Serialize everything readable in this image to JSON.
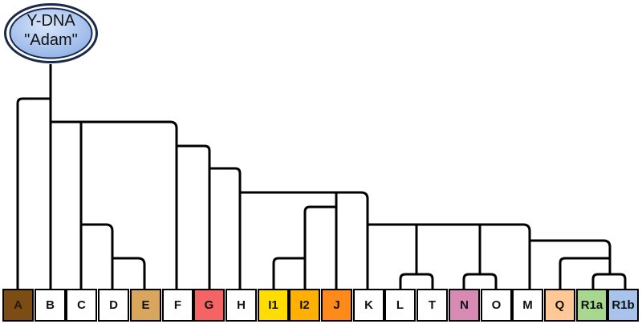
{
  "root": {
    "line1": "Y-DNA",
    "line2": "\"Adam\""
  },
  "haplogroups": [
    {
      "label": "A",
      "color": "#7b4c14",
      "text_color": "#2a1a05"
    },
    {
      "label": "B",
      "color": "#ffffff",
      "text_color": "#111111"
    },
    {
      "label": "C",
      "color": "#ffffff",
      "text_color": "#111111"
    },
    {
      "label": "D",
      "color": "#ffffff",
      "text_color": "#111111"
    },
    {
      "label": "E",
      "color": "#d9a65e",
      "text_color": "#111111"
    },
    {
      "label": "F",
      "color": "#ffffff",
      "text_color": "#111111"
    },
    {
      "label": "G",
      "color": "#f46464",
      "text_color": "#111111"
    },
    {
      "label": "H",
      "color": "#ffffff",
      "text_color": "#111111"
    },
    {
      "label": "I1",
      "color": "#ffdd00",
      "text_color": "#111111"
    },
    {
      "label": "I2",
      "color": "#ffb000",
      "text_color": "#111111"
    },
    {
      "label": "J",
      "color": "#ff8a1a",
      "text_color": "#111111"
    },
    {
      "label": "K",
      "color": "#ffffff",
      "text_color": "#111111"
    },
    {
      "label": "L",
      "color": "#ffffff",
      "text_color": "#111111"
    },
    {
      "label": "T",
      "color": "#ffffff",
      "text_color": "#111111"
    },
    {
      "label": "N",
      "color": "#d68ab4",
      "text_color": "#111111"
    },
    {
      "label": "O",
      "color": "#ffffff",
      "text_color": "#111111"
    },
    {
      "label": "M",
      "color": "#ffffff",
      "text_color": "#111111"
    },
    {
      "label": "Q",
      "color": "#ffc896",
      "text_color": "#111111"
    },
    {
      "label": "R1a",
      "color": "#a8d890",
      "text_color": "#111111"
    },
    {
      "label": "R1b",
      "color": "#a8c4ec",
      "text_color": "#111111"
    }
  ],
  "colors": {
    "line": "#000000",
    "root_fill": "#a9c4ee",
    "root_stroke": "#1a2a4a"
  }
}
